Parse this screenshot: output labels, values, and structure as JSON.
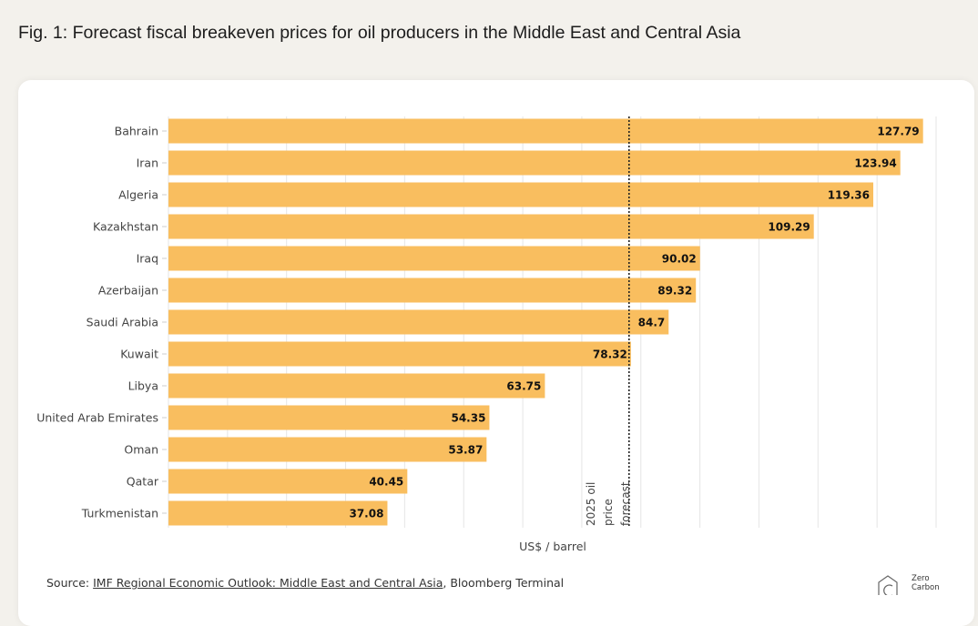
{
  "title": "Fig. 1: Forecast fiscal breakeven prices for oil producers in the Middle East and Central Asia",
  "chart_data": {
    "type": "bar",
    "orientation": "horizontal",
    "categories": [
      "Bahrain",
      "Iran",
      "Algeria",
      "Kazakhstan",
      "Iraq",
      "Azerbaijan",
      "Saudi Arabia",
      "Kuwait",
      "Libya",
      "United Arab Emirates",
      "Oman",
      "Qatar",
      "Turkmenistan"
    ],
    "values": [
      127.79,
      123.94,
      119.36,
      109.29,
      90.02,
      89.32,
      84.7,
      78.32,
      63.75,
      54.35,
      53.87,
      40.45,
      37.08
    ],
    "value_labels": [
      "127.79",
      "123.94",
      "119.36",
      "109.29",
      "90.02",
      "89.32",
      "84.7",
      "78.32",
      "63.75",
      "54.35",
      "53.87",
      "40.45",
      "37.08"
    ],
    "xlabel": "US$ / barrel",
    "xlim": [
      0,
      130
    ],
    "grid": true,
    "bar_color": "#f9be5f",
    "reference_line": {
      "value": 78,
      "label_lines": [
        "2025 oil",
        "price",
        "forecast"
      ]
    }
  },
  "source": {
    "prefix": "Source: ",
    "link": "IMF Regional Economic Outlook: Middle East and Central Asia",
    "suffix": ", Bloomberg Terminal"
  },
  "logo": {
    "line1": "Zero",
    "line2": "Carbon"
  }
}
